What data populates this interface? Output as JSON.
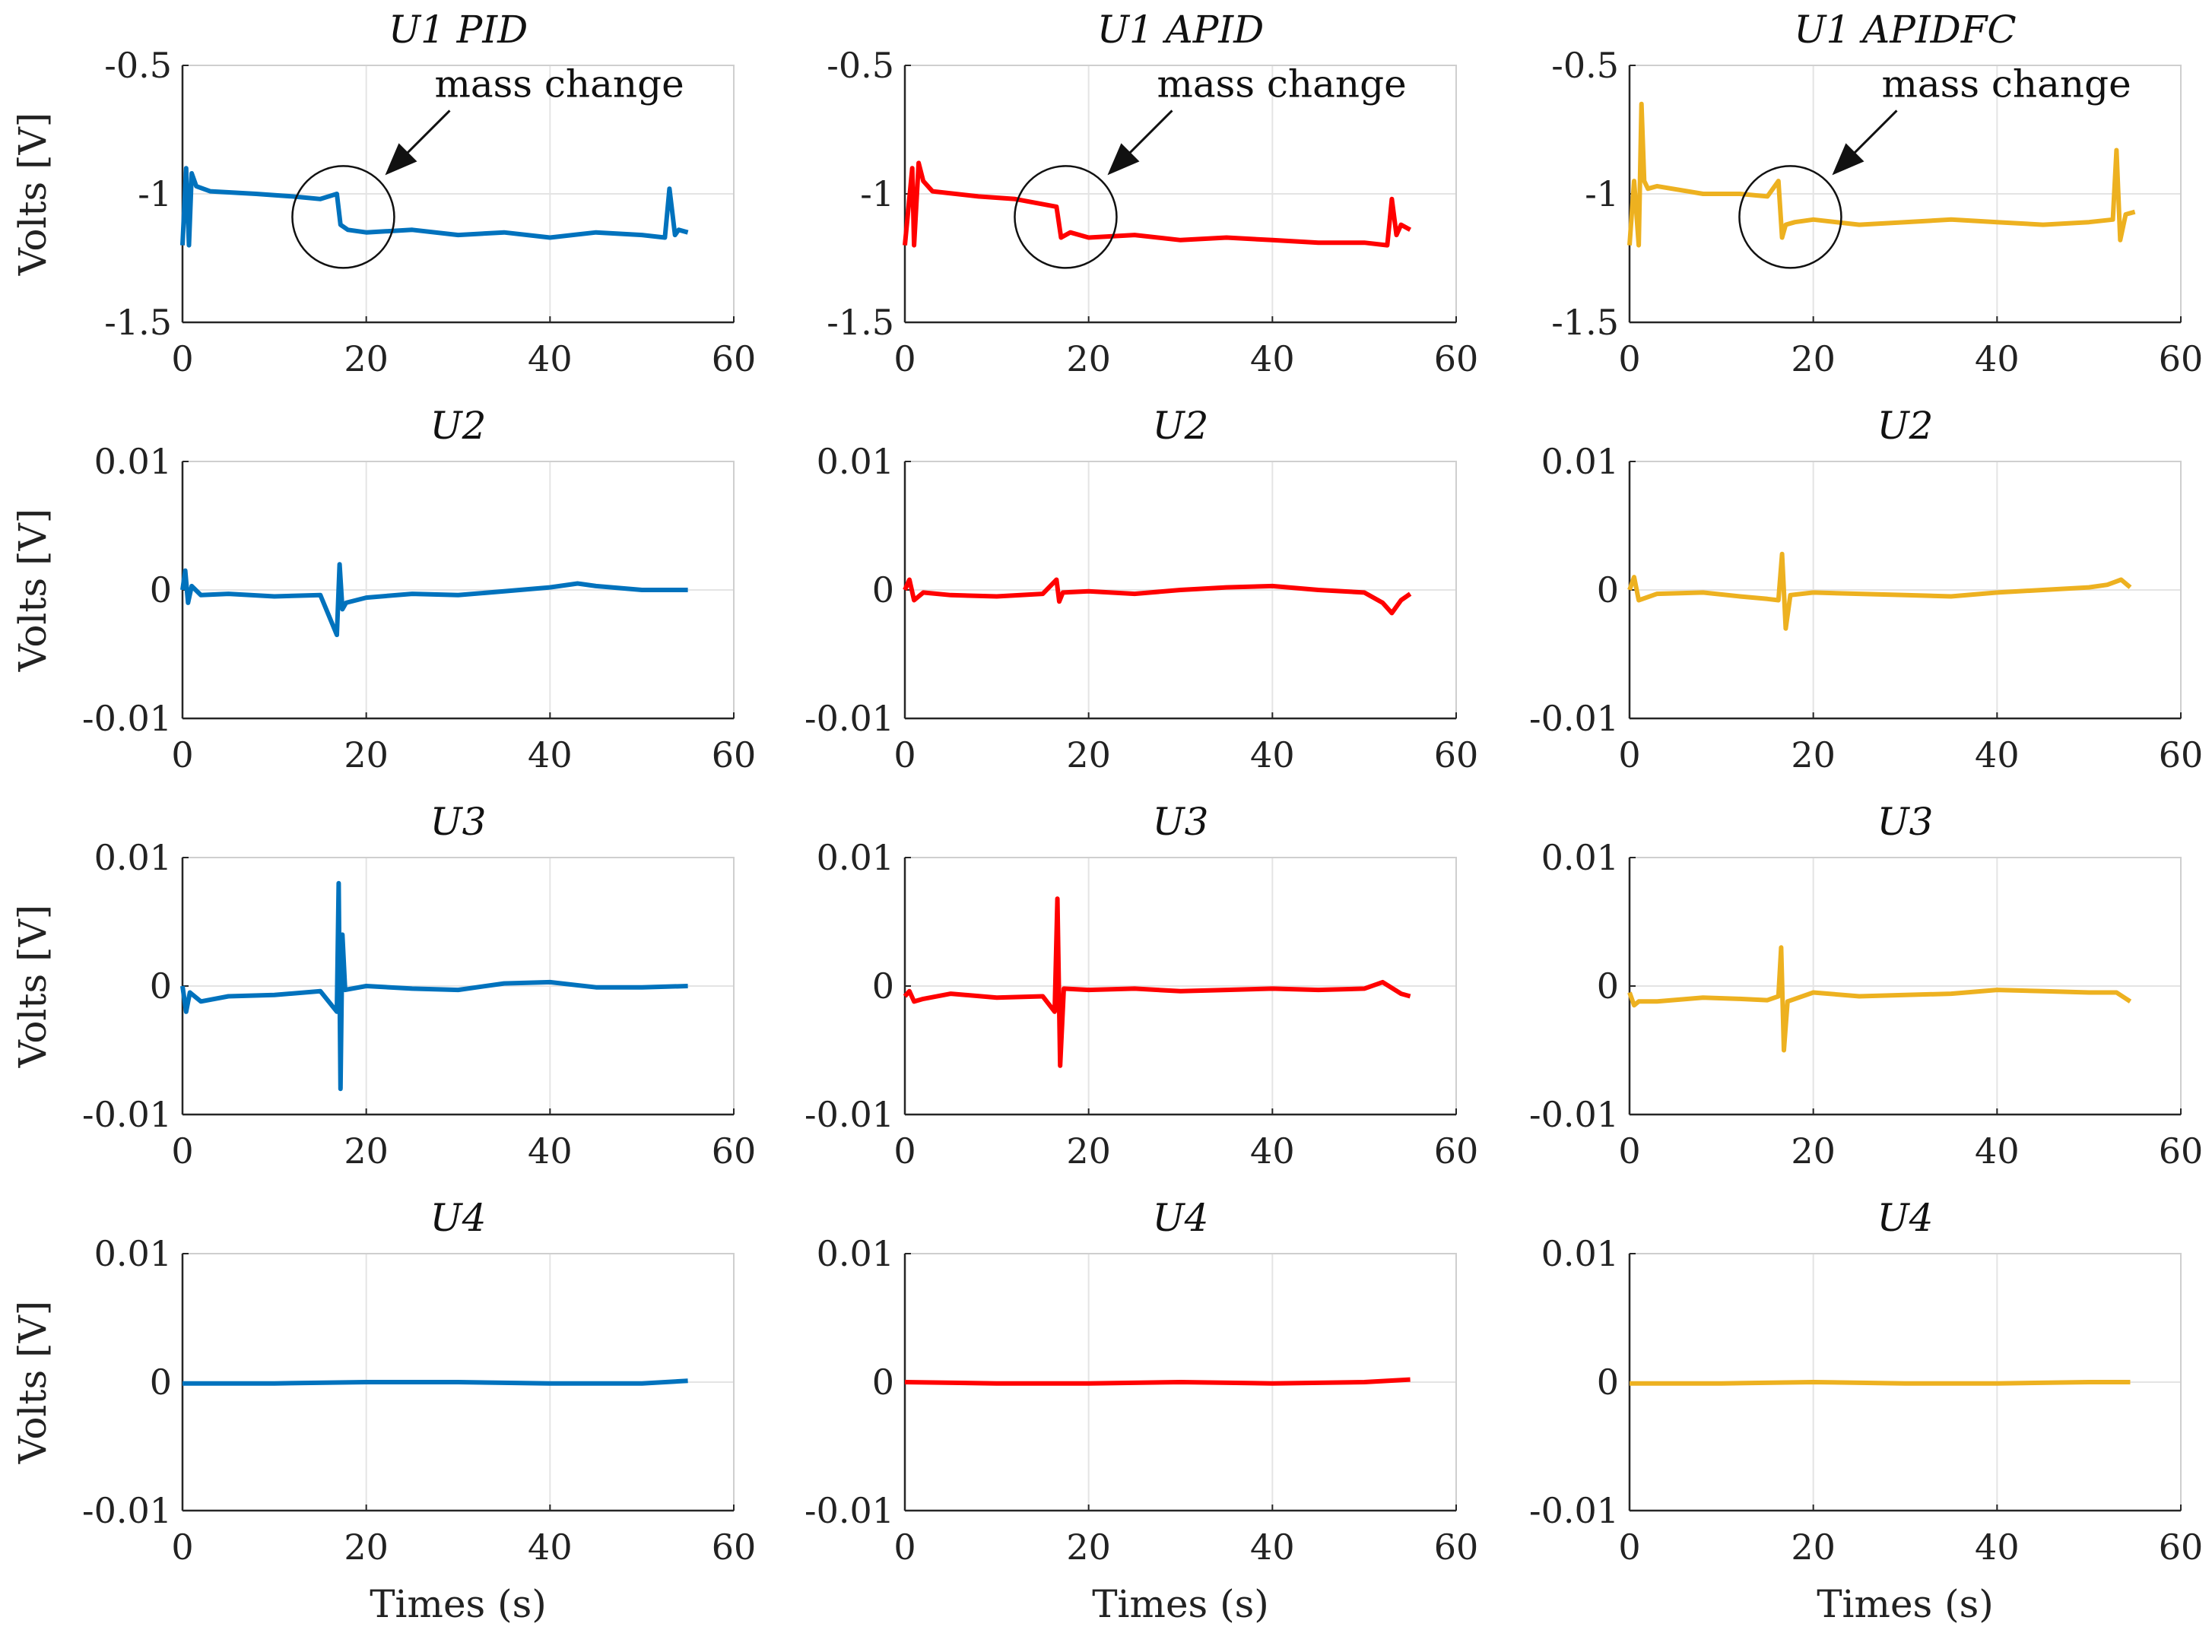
{
  "chart_data": {
    "type": "line",
    "layout": "4x3 grid",
    "xlabel": "Times (s)",
    "ylabel": "Volts [V]",
    "xlim": [
      0,
      60
    ],
    "xticks": [
      "0",
      "20",
      "40",
      "60"
    ],
    "columns": [
      {
        "name": "PID",
        "color": "#0072BD"
      },
      {
        "name": "APID",
        "color": "#FF0000"
      },
      {
        "name": "APIDFC",
        "color": "#EDB120"
      }
    ],
    "rows": [
      {
        "name": "U1",
        "ylim": [
          -1.5,
          -0.5
        ],
        "yticks": [
          "-0.5",
          "-1",
          "-1.5"
        ],
        "titles": [
          "U1 PID",
          "U1 APID",
          "U1 APIDFC"
        ],
        "annotation": "mass change",
        "annotation_t": 17.5,
        "series": [
          {
            "name": "U1 PID",
            "t": [
              0,
              0.4,
              0.7,
              1,
              1.5,
              3,
              8,
              12,
              15,
              16.8,
              17.2,
              18,
              20,
              25,
              30,
              35,
              40,
              45,
              50,
              52.5,
              53,
              53.6,
              54,
              55
            ],
            "v": [
              -1.2,
              -0.9,
              -1.2,
              -0.92,
              -0.97,
              -0.99,
              -1.0,
              -1.01,
              -1.02,
              -1.0,
              -1.12,
              -1.14,
              -1.15,
              -1.14,
              -1.16,
              -1.15,
              -1.17,
              -1.15,
              -1.16,
              -1.17,
              -0.98,
              -1.16,
              -1.14,
              -1.15
            ]
          },
          {
            "name": "U1 APID",
            "t": [
              0,
              0.8,
              1,
              1.5,
              2,
              3,
              8,
              12,
              16.5,
              17,
              18,
              20,
              25,
              30,
              35,
              40,
              45,
              50,
              52.5,
              53,
              53.5,
              54,
              55
            ],
            "v": [
              -1.2,
              -0.9,
              -1.2,
              -0.88,
              -0.95,
              -0.99,
              -1.01,
              -1.02,
              -1.05,
              -1.17,
              -1.15,
              -1.17,
              -1.16,
              -1.18,
              -1.17,
              -1.18,
              -1.19,
              -1.19,
              -1.2,
              -1.02,
              -1.16,
              -1.12,
              -1.14
            ]
          },
          {
            "name": "U1 APIDFC",
            "t": [
              0,
              0.5,
              1,
              1.3,
              1.6,
              2,
              3,
              8,
              12,
              15,
              16.2,
              16.6,
              17,
              18,
              20,
              25,
              30,
              35,
              40,
              45,
              50,
              52.6,
              53,
              53.4,
              54,
              55
            ],
            "v": [
              -1.2,
              -0.95,
              -1.2,
              -0.65,
              -0.95,
              -0.98,
              -0.97,
              -1.0,
              -1.0,
              -1.01,
              -0.95,
              -1.17,
              -1.12,
              -1.11,
              -1.1,
              -1.12,
              -1.11,
              -1.1,
              -1.11,
              -1.12,
              -1.11,
              -1.1,
              -0.83,
              -1.18,
              -1.08,
              -1.07
            ]
          }
        ]
      },
      {
        "name": "U2",
        "ylim": [
          -0.01,
          0.01
        ],
        "yticks": [
          "0.01",
          "0",
          "-0.01"
        ],
        "titles": [
          "U2",
          "U2",
          "U2"
        ],
        "series": [
          {
            "name": "U2 PID",
            "t": [
              0,
              0.3,
              0.6,
              1,
              2,
              5,
              10,
              15,
              16.8,
              17.1,
              17.4,
              17.8,
              20,
              25,
              30,
              35,
              40,
              43,
              45,
              50,
              55
            ],
            "v": [
              0.0,
              0.0015,
              -0.001,
              0.0003,
              -0.0004,
              -0.0003,
              -0.0005,
              -0.0004,
              -0.0035,
              0.002,
              -0.0015,
              -0.001,
              -0.0006,
              -0.0003,
              -0.0004,
              -0.0001,
              0.0002,
              0.0005,
              0.0003,
              0.0,
              0.0
            ]
          },
          {
            "name": "U2 APID",
            "t": [
              0,
              0.5,
              1,
              2,
              5,
              10,
              15,
              16.5,
              16.8,
              17.2,
              20,
              25,
              30,
              35,
              40,
              45,
              50,
              52,
              53,
              54,
              55
            ],
            "v": [
              0.0,
              0.0008,
              -0.0008,
              -0.0002,
              -0.0004,
              -0.0005,
              -0.0003,
              0.0008,
              -0.0009,
              -0.0002,
              -0.0001,
              -0.0003,
              0.0,
              0.0002,
              0.0003,
              0.0,
              -0.0002,
              -0.001,
              -0.0018,
              -0.0008,
              -0.0003
            ]
          },
          {
            "name": "U2 APIDFC",
            "t": [
              0,
              0.5,
              1,
              3,
              8,
              12,
              15,
              16.2,
              16.6,
              17,
              17.5,
              20,
              25,
              30,
              35,
              40,
              45,
              50,
              52,
              53.5,
              54.5
            ],
            "v": [
              0.0,
              0.001,
              -0.0008,
              -0.0003,
              -0.0002,
              -0.0005,
              -0.0007,
              -0.0008,
              0.0028,
              -0.003,
              -0.0004,
              -0.0002,
              -0.0003,
              -0.0004,
              -0.0005,
              -0.0002,
              0.0,
              0.0002,
              0.0004,
              0.0008,
              0.0002
            ]
          }
        ]
      },
      {
        "name": "U3",
        "ylim": [
          -0.01,
          0.01
        ],
        "yticks": [
          "0.01",
          "0",
          "-0.01"
        ],
        "titles": [
          "U3",
          "U3",
          "U3"
        ],
        "series": [
          {
            "name": "U3 PID",
            "t": [
              0,
              0.4,
              0.8,
              2,
              5,
              10,
              15,
              16.8,
              17,
              17.2,
              17.4,
              17.7,
              20,
              25,
              30,
              35,
              40,
              45,
              50,
              55
            ],
            "v": [
              0.0,
              -0.002,
              -0.0005,
              -0.0012,
              -0.0008,
              -0.0007,
              -0.0004,
              -0.002,
              0.008,
              -0.008,
              0.004,
              -0.0003,
              0.0,
              -0.0002,
              -0.0003,
              0.0002,
              0.0003,
              -0.0001,
              -0.0001,
              0.0
            ]
          },
          {
            "name": "U3 APID",
            "t": [
              0,
              0.5,
              1,
              2,
              5,
              10,
              15,
              16.3,
              16.6,
              16.9,
              17.3,
              20,
              25,
              30,
              35,
              40,
              45,
              50,
              52,
              54,
              55
            ],
            "v": [
              -0.0008,
              -0.0004,
              -0.0012,
              -0.001,
              -0.0006,
              -0.0009,
              -0.0008,
              -0.002,
              0.0068,
              -0.0062,
              -0.0002,
              -0.0003,
              -0.0002,
              -0.0004,
              -0.0003,
              -0.0002,
              -0.0003,
              -0.0002,
              0.0003,
              -0.0006,
              -0.0008
            ]
          },
          {
            "name": "U3 APIDFC",
            "t": [
              0,
              0.5,
              1,
              3,
              8,
              12,
              15,
              16.2,
              16.5,
              16.8,
              17.2,
              20,
              25,
              30,
              35,
              40,
              45,
              50,
              53,
              54.5
            ],
            "v": [
              -0.0005,
              -0.0015,
              -0.0012,
              -0.0012,
              -0.0009,
              -0.001,
              -0.0011,
              -0.0008,
              0.003,
              -0.005,
              -0.0012,
              -0.0005,
              -0.0008,
              -0.0007,
              -0.0006,
              -0.0003,
              -0.0004,
              -0.0005,
              -0.0005,
              -0.0012
            ]
          }
        ]
      },
      {
        "name": "U4",
        "ylim": [
          -0.01,
          0.01
        ],
        "yticks": [
          "0.01",
          "0",
          "-0.01"
        ],
        "titles": [
          "U4",
          "U4",
          "U4"
        ],
        "series": [
          {
            "name": "U4 PID",
            "t": [
              0,
              10,
              20,
              30,
              40,
              50,
              55
            ],
            "v": [
              -0.0001,
              -0.0001,
              0.0,
              0.0,
              -0.0001,
              -0.0001,
              0.0001
            ]
          },
          {
            "name": "U4 APID",
            "t": [
              0,
              10,
              20,
              30,
              40,
              50,
              55
            ],
            "v": [
              0.0,
              -0.0001,
              -0.0001,
              0.0,
              -0.0001,
              0.0,
              0.0002
            ]
          },
          {
            "name": "U4 APIDFC",
            "t": [
              0,
              10,
              20,
              30,
              40,
              50,
              54.5
            ],
            "v": [
              -0.0001,
              -0.0001,
              0.0,
              -0.0001,
              -0.0001,
              0.0,
              0.0
            ]
          }
        ]
      }
    ]
  }
}
